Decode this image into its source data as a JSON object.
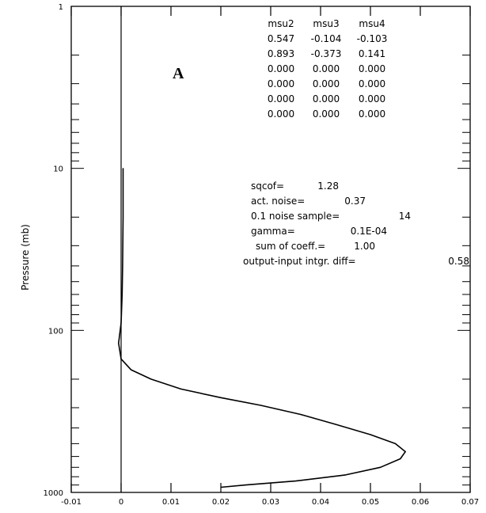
{
  "chart_data": {
    "type": "line",
    "panel_label": "A",
    "ylabel": "Pressure (mb)",
    "xlabel": "",
    "xlim": [
      -0.01,
      0.07
    ],
    "ylim": [
      1000,
      1
    ],
    "y_scale": "log",
    "x_ticks": [
      "-0.01",
      "0",
      "0.01",
      "0.02",
      "0.03",
      "0.04",
      "0.05",
      "0.06",
      "0.07"
    ],
    "y_ticks": [
      "1",
      "10",
      "100",
      "1000"
    ],
    "grid": false,
    "reference_line_x": 0,
    "series": [
      {
        "points": [
          [
            0.0004,
            10
          ],
          [
            0.0004,
            20
          ],
          [
            0.0003,
            40
          ],
          [
            0.0002,
            60
          ],
          [
            0.0,
            90
          ],
          [
            -0.0005,
            120
          ],
          [
            0.0,
            150
          ],
          [
            0.002,
            175
          ],
          [
            0.006,
            200
          ],
          [
            0.012,
            230
          ],
          [
            0.02,
            260
          ],
          [
            0.028,
            290
          ],
          [
            0.036,
            330
          ],
          [
            0.043,
            380
          ],
          [
            0.05,
            440
          ],
          [
            0.055,
            500
          ],
          [
            0.057,
            560
          ],
          [
            0.056,
            620
          ],
          [
            0.052,
            700
          ],
          [
            0.045,
            780
          ],
          [
            0.035,
            850
          ],
          [
            0.025,
            900
          ],
          [
            0.02,
            930
          ]
        ]
      }
    ]
  },
  "annotations": {
    "table_headers": [
      "msu2",
      "msu3",
      "msu4"
    ],
    "table_rows": [
      [
        "0.547",
        "-0.104",
        "-0.103"
      ],
      [
        "0.893",
        "-0.373",
        "0.141"
      ],
      [
        "0.000",
        "0.000",
        "0.000"
      ],
      [
        "0.000",
        "0.000",
        "0.000"
      ],
      [
        "0.000",
        "0.000",
        "0.000"
      ],
      [
        "0.000",
        "0.000",
        "0.000"
      ]
    ],
    "stats": [
      {
        "label": "sqcof=",
        "value": "1.28"
      },
      {
        "label": "act. noise=",
        "value": "0.37"
      },
      {
        "label": "0.1 noise sample=",
        "value": "14"
      },
      {
        "label": "gamma=",
        "value": "0.1E-04"
      },
      {
        "label": "sum of coeff.=",
        "value": "1.00"
      },
      {
        "label": "output-input intgr. diff=",
        "value": "0.58"
      }
    ]
  }
}
